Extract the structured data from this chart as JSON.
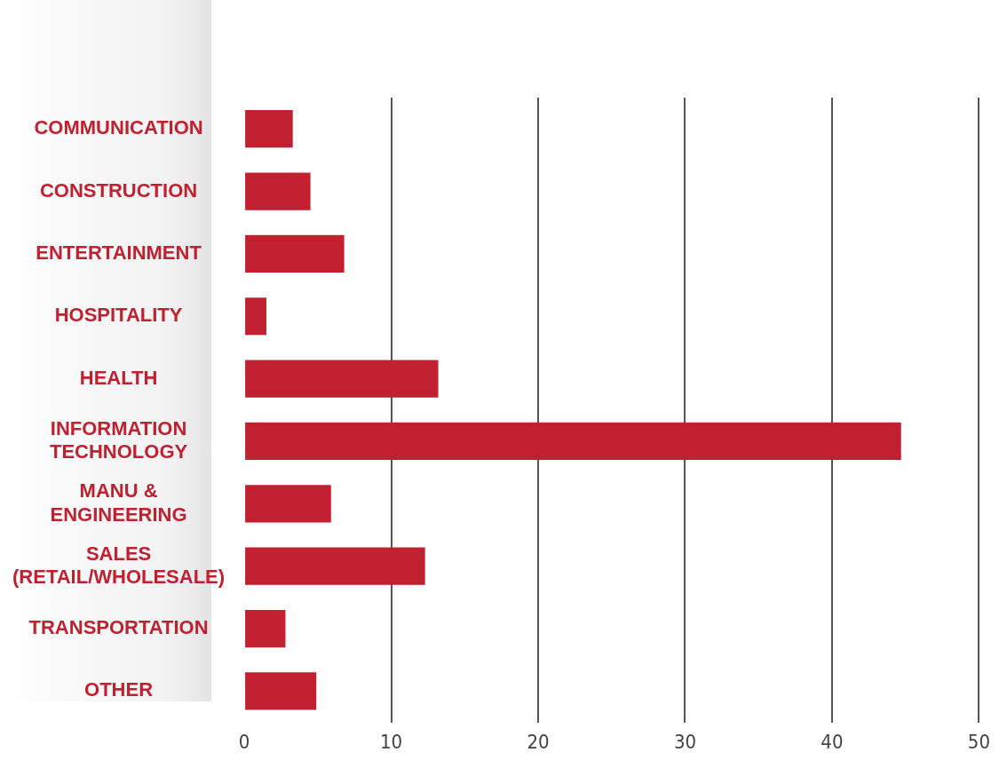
{
  "chart_data": {
    "type": "bar",
    "orientation": "horizontal",
    "categories": [
      "COMMUNICATION",
      "CONSTRUCTION",
      "ENTERTAINMENT",
      "HOSPITALITY",
      "HEALTH",
      "INFORMATION TECHNOLOGY",
      "MANU & ENGINEERING",
      "SALES (RETAIL/WHOLESALE)",
      "TRANSPORTATION",
      "OTHER"
    ],
    "values": [
      3.3,
      4.5,
      6.8,
      1.5,
      13.2,
      44.7,
      5.9,
      12.3,
      2.8,
      4.9
    ],
    "color": "#c0202f",
    "xlim": [
      0,
      50
    ],
    "xticks": [
      0,
      10,
      20,
      30,
      40,
      50
    ],
    "grid": "x"
  }
}
